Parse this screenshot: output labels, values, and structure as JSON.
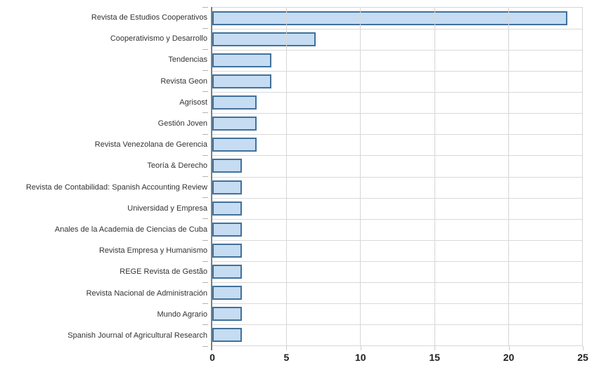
{
  "chart_data": {
    "type": "bar",
    "orientation": "horizontal",
    "title": "",
    "xlabel": "",
    "ylabel": "",
    "categories": [
      "Revista de Estudios Cooperativos",
      "Cooperativismo y Desarrollo",
      "Tendencias",
      "Revista Geon",
      "Agrisost",
      "Gestión Joven",
      "Revista Venezolana de Gerencia",
      "Teoría & Derecho",
      "Revista de Contabilidad: Spanish Accounting Review",
      "Universidad y Empresa",
      "Anales de la Academia de Ciencias de Cuba",
      "Revista Empresa y Humanismo",
      "REGE Revista de Gestão",
      "Revista Nacional de Administración",
      "Mundo Agrario",
      "Spanish Journal of Agricultural Research"
    ],
    "values": [
      24,
      7,
      4,
      4,
      3,
      3,
      3,
      2,
      2,
      2,
      2,
      2,
      2,
      2,
      2,
      2
    ],
    "xlim": [
      0,
      25
    ],
    "xticks": [
      0,
      5,
      10,
      15,
      20,
      25
    ],
    "grid": true,
    "legend": "none",
    "colors": {
      "bar_fill": "#c5dcf2",
      "bar_border": "#41719c",
      "gridline": "#d6d6d6",
      "axis_line": "#7f7f7f",
      "category_label": "#333333",
      "tick_label": "#1f1f1f",
      "background": "#ffffff"
    }
  }
}
